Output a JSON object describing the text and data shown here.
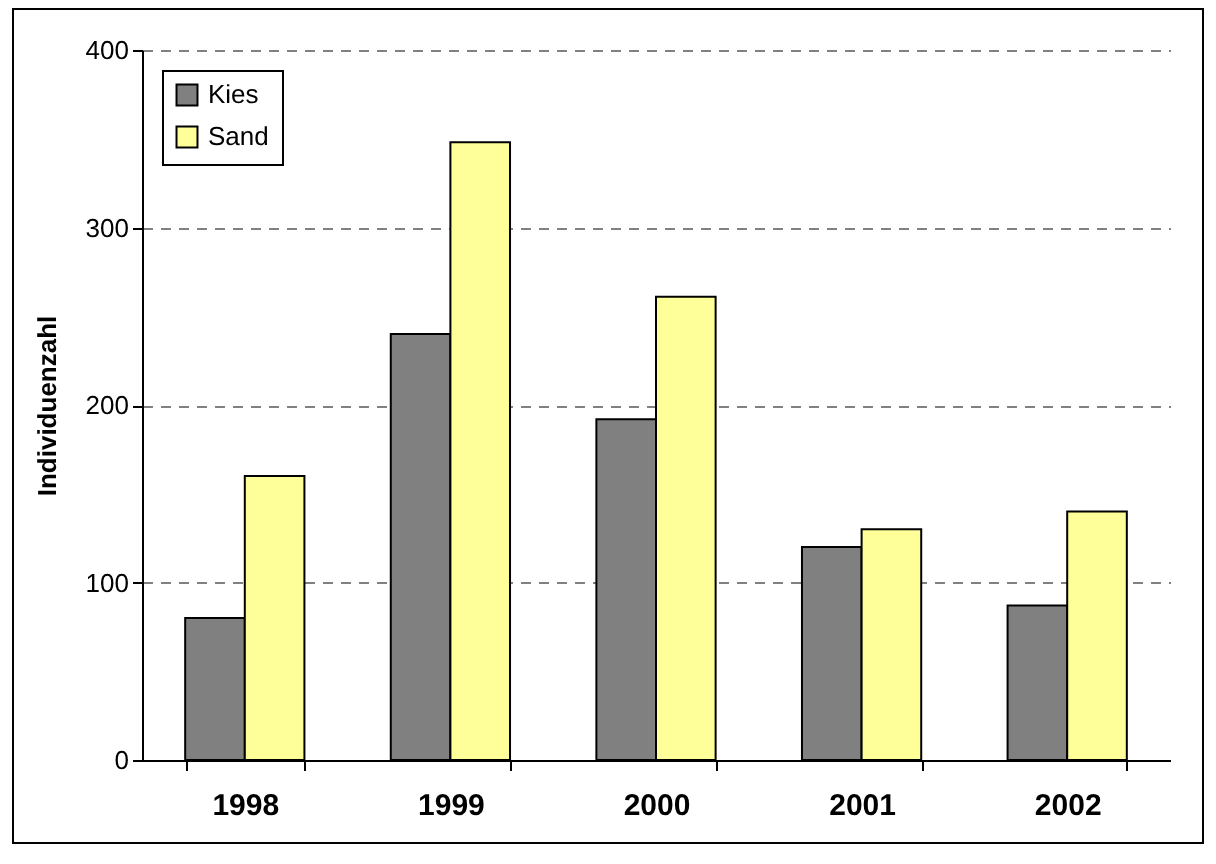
{
  "chart_data": {
    "type": "bar",
    "ylabel": "Individuenzahl",
    "categories": [
      "1998",
      "1999",
      "2000",
      "2001",
      "2002"
    ],
    "series": [
      {
        "name": "Kies",
        "color": "#808080",
        "values": [
          80,
          240,
          192,
          120,
          87
        ]
      },
      {
        "name": "Sand",
        "color": "#ffff99",
        "values": [
          160,
          348,
          261,
          130,
          140
        ]
      }
    ],
    "ylim": [
      0,
      400
    ],
    "yticks": [
      0,
      100,
      200,
      300,
      400
    ],
    "grid": "y",
    "legend": "top left"
  }
}
